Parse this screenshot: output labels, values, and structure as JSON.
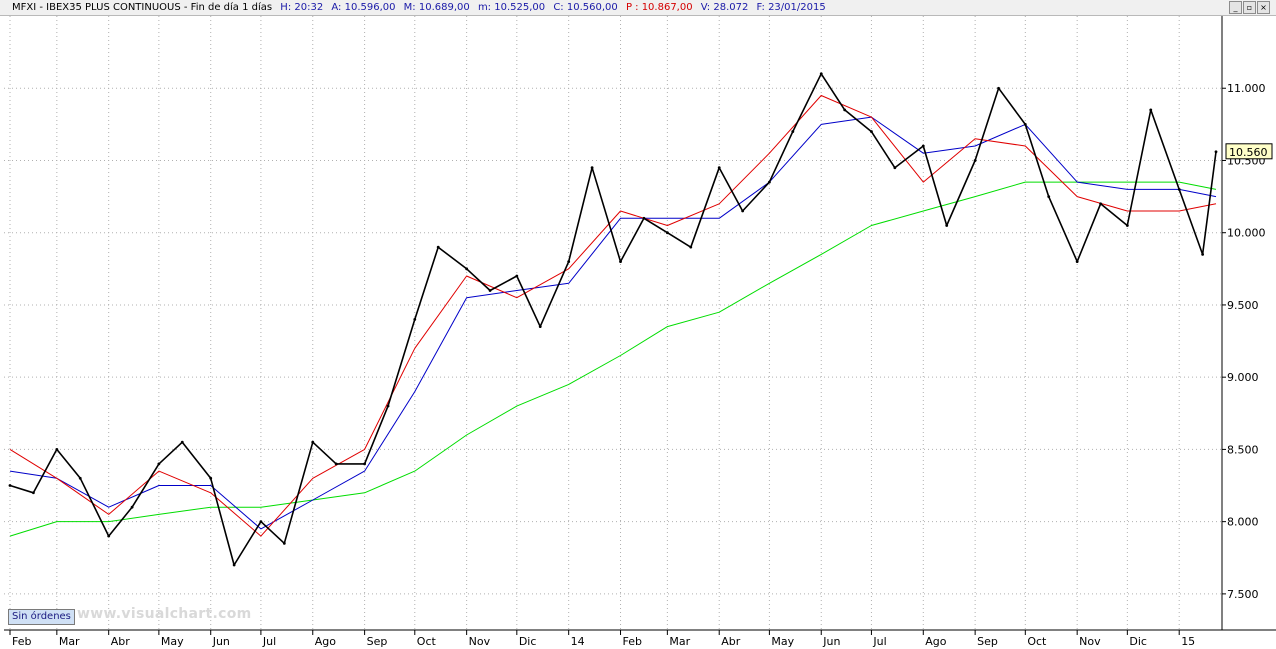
{
  "header": {
    "symbol": "MFXI - IBEX35 PLUS CONTINUOUS - Fin de día 1 días",
    "time": "H: 20:32",
    "open": "A: 10.596,00",
    "high": "M: 10.689,00",
    "low": "m: 10.525,00",
    "close": "C: 10.560,00",
    "pivot": "P : 10.867,00",
    "volume": "V: 28.072",
    "date": "F: 23/01/2015",
    "buttons": [
      "_",
      "▫",
      "×"
    ]
  },
  "footer": {
    "orders_badge": "Sin órdenes",
    "watermark": "www.visualchart.com"
  },
  "colors": {
    "price": "#000000",
    "ma_fast": "#e00000",
    "ma_medium": "#0000c8",
    "ma_slow": "#00dd00",
    "grid": "#b0b0b0",
    "last_price_label": "#ffffc8"
  },
  "chart_data": {
    "type": "line",
    "title": "MFXI - IBEX35 PLUS CONTINUOUS",
    "xlabel": "",
    "ylabel": "",
    "x_range": [
      "2013-02-01",
      "2015-01-23"
    ],
    "ylim": [
      7250,
      11500
    ],
    "yticks": [
      7500,
      8000,
      8500,
      9000,
      9500,
      10000,
      10500,
      11000
    ],
    "ytick_labels": [
      "7.500",
      "8.000",
      "8.500",
      "9.000",
      "9.500",
      "10.000",
      "10.500",
      "11.000"
    ],
    "xtick_labels": [
      "Feb",
      "Mar",
      "Abr",
      "May",
      "Jun",
      "Jul",
      "Ago",
      "Sep",
      "Oct",
      "Nov",
      "Dic",
      "14",
      "Feb",
      "Mar",
      "Abr",
      "May",
      "Jun",
      "Jul",
      "Ago",
      "Sep",
      "Oct",
      "Nov",
      "Dic",
      "15"
    ],
    "xtick_dates": [
      "2013-02-01",
      "2013-03-01",
      "2013-04-01",
      "2013-05-01",
      "2013-06-01",
      "2013-07-01",
      "2013-08-01",
      "2013-09-01",
      "2013-10-01",
      "2013-11-01",
      "2013-12-01",
      "2014-01-01",
      "2014-02-01",
      "2014-03-01",
      "2014-04-01",
      "2014-05-01",
      "2014-06-01",
      "2014-07-01",
      "2014-08-01",
      "2014-09-01",
      "2014-10-01",
      "2014-11-01",
      "2014-12-01",
      "2015-01-01"
    ],
    "grid": true,
    "last_value_label": "10.560",
    "series": [
      {
        "role": "price",
        "x": [
          "2013-02-01",
          "2013-02-15",
          "2013-03-01",
          "2013-03-15",
          "2013-04-01",
          "2013-04-15",
          "2013-05-01",
          "2013-05-15",
          "2013-06-01",
          "2013-06-15",
          "2013-07-01",
          "2013-07-15",
          "2013-08-01",
          "2013-08-15",
          "2013-09-01",
          "2013-09-15",
          "2013-10-01",
          "2013-10-15",
          "2013-11-01",
          "2013-11-15",
          "2013-12-01",
          "2013-12-15",
          "2014-01-01",
          "2014-01-15",
          "2014-02-01",
          "2014-02-15",
          "2014-03-01",
          "2014-03-15",
          "2014-04-01",
          "2014-04-15",
          "2014-05-01",
          "2014-05-15",
          "2014-06-01",
          "2014-06-15",
          "2014-07-01",
          "2014-07-15",
          "2014-08-01",
          "2014-08-15",
          "2014-09-01",
          "2014-09-15",
          "2014-10-01",
          "2014-10-15",
          "2014-11-01",
          "2014-11-15",
          "2014-12-01",
          "2014-12-15",
          "2015-01-01",
          "2015-01-15",
          "2015-01-23"
        ],
        "values": [
          8250,
          8200,
          8500,
          8300,
          7900,
          8100,
          8400,
          8550,
          8300,
          7700,
          8000,
          7850,
          8550,
          8400,
          8400,
          8800,
          9400,
          9900,
          9750,
          9600,
          9700,
          9350,
          9800,
          10450,
          9800,
          10100,
          10000,
          9900,
          10450,
          10150,
          10350,
          10700,
          11100,
          10850,
          10700,
          10450,
          10600,
          10050,
          10500,
          11000,
          10750,
          10250,
          9800,
          10200,
          10050,
          10850,
          10300,
          9850,
          10560
        ]
      },
      {
        "role": "ma_fast",
        "x": [
          "2013-02-01",
          "2013-03-01",
          "2013-04-01",
          "2013-05-01",
          "2013-06-01",
          "2013-07-01",
          "2013-08-01",
          "2013-09-01",
          "2013-10-01",
          "2013-11-01",
          "2013-12-01",
          "2014-01-01",
          "2014-02-01",
          "2014-03-01",
          "2014-04-01",
          "2014-05-01",
          "2014-06-01",
          "2014-07-01",
          "2014-08-01",
          "2014-09-01",
          "2014-10-01",
          "2014-11-01",
          "2014-12-01",
          "2015-01-01",
          "2015-01-23"
        ],
        "values": [
          8500,
          8300,
          8050,
          8350,
          8200,
          7900,
          8300,
          8500,
          9200,
          9700,
          9550,
          9750,
          10150,
          10050,
          10200,
          10550,
          10950,
          10800,
          10350,
          10650,
          10600,
          10250,
          10150,
          10150,
          10200
        ]
      },
      {
        "role": "ma_medium",
        "x": [
          "2013-02-01",
          "2013-03-01",
          "2013-04-01",
          "2013-05-01",
          "2013-06-01",
          "2013-07-01",
          "2013-08-01",
          "2013-09-01",
          "2013-10-01",
          "2013-11-01",
          "2013-12-01",
          "2014-01-01",
          "2014-02-01",
          "2014-03-01",
          "2014-04-01",
          "2014-05-01",
          "2014-06-01",
          "2014-07-01",
          "2014-08-01",
          "2014-09-01",
          "2014-10-01",
          "2014-11-01",
          "2014-12-01",
          "2015-01-01",
          "2015-01-23"
        ],
        "values": [
          8350,
          8300,
          8100,
          8250,
          8250,
          7950,
          8150,
          8350,
          8900,
          9550,
          9600,
          9650,
          10100,
          10100,
          10100,
          10350,
          10750,
          10800,
          10550,
          10600,
          10750,
          10350,
          10300,
          10300,
          10250
        ]
      },
      {
        "role": "ma_slow",
        "x": [
          "2013-02-01",
          "2013-03-01",
          "2013-04-01",
          "2013-05-01",
          "2013-06-01",
          "2013-07-01",
          "2013-08-01",
          "2013-09-01",
          "2013-10-01",
          "2013-11-01",
          "2013-12-01",
          "2014-01-01",
          "2014-02-01",
          "2014-03-01",
          "2014-04-01",
          "2014-05-01",
          "2014-06-01",
          "2014-07-01",
          "2014-08-01",
          "2014-09-01",
          "2014-10-01",
          "2014-11-01",
          "2014-12-01",
          "2015-01-01",
          "2015-01-23"
        ],
        "values": [
          7900,
          8000,
          8000,
          8050,
          8100,
          8100,
          8150,
          8200,
          8350,
          8600,
          8800,
          8950,
          9150,
          9350,
          9450,
          9650,
          9850,
          10050,
          10150,
          10250,
          10350,
          10350,
          10350,
          10350,
          10300
        ]
      }
    ]
  }
}
